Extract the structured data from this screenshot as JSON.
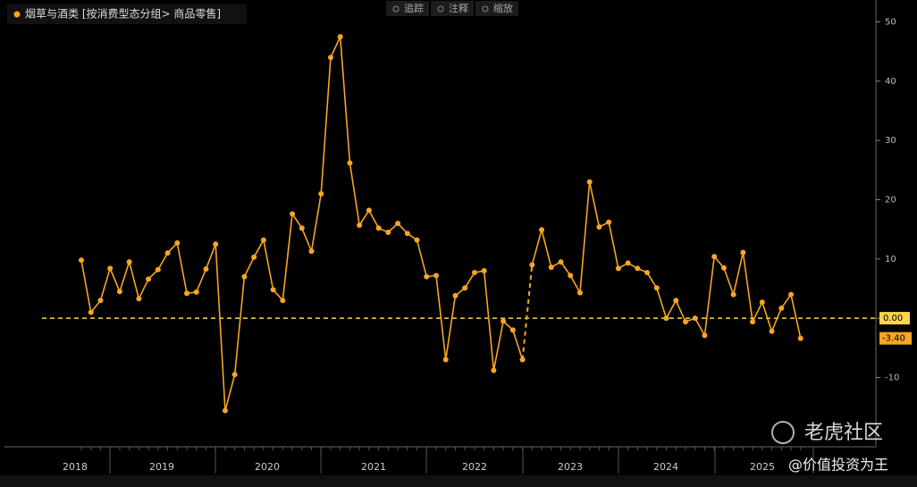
{
  "chart_data": {
    "type": "line",
    "legend": "烟草与酒类 [按消费型态分组> 商品零售]",
    "toolbar": [
      "追踪",
      "注释",
      "缩放"
    ],
    "watermark": [
      "老虎社区",
      "@价值投资为王"
    ],
    "x_groups": [
      "2018",
      "2019",
      "2020",
      "2021",
      "2022",
      "2023",
      "2024",
      "2025"
    ],
    "categories": [
      null,
      null,
      null,
      null,
      null,
      null,
      null,
      null,
      null,
      null,
      null,
      null,
      null,
      null,
      null,
      null,
      null,
      null,
      null,
      null,
      null,
      null,
      null,
      null,
      null,
      null,
      null,
      null,
      null,
      null,
      null,
      null,
      null,
      null,
      null,
      null,
      null,
      null,
      null,
      null,
      null,
      null,
      null,
      null,
      null,
      null,
      null,
      null,
      null,
      null,
      null,
      null,
      null,
      null,
      null,
      null,
      null,
      null,
      null,
      null,
      null,
      null,
      null,
      null,
      null,
      null,
      null,
      null,
      null,
      null,
      null,
      null,
      null,
      null,
      null,
      null
    ],
    "series": [
      {
        "name": "烟草与酒类",
        "color": "#f5a623",
        "values": [
          9.8,
          1,
          3,
          8.4,
          4.5,
          9.5,
          3.3,
          6.6,
          8.2,
          11,
          12.7,
          4.2,
          4.4,
          8.3,
          12.5,
          -15.6,
          -9.5,
          7,
          10.3,
          13.2,
          4.8,
          3,
          17.6,
          15.2,
          11.3,
          21,
          44,
          47.5,
          26.2,
          15.7,
          18.2,
          15.2,
          14.5,
          16,
          14.3,
          13.2,
          7,
          7.2,
          -7,
          3.8,
          5.1,
          7.7,
          8,
          -8.8,
          -0.5,
          -2,
          -7,
          9,
          14.9,
          8.6,
          9.5,
          7.2,
          4.3,
          23,
          15.4,
          16.2,
          8.4,
          9.3,
          8.4,
          7.7,
          5.1,
          0,
          3,
          -0.6,
          0,
          -2.9,
          10.4,
          8.5,
          4,
          11.1,
          -0.6,
          2.7,
          -2.2,
          1.7,
          4,
          -3.4
        ],
        "value_labels": [
          null,
          null,
          null,
          null,
          null,
          null,
          null,
          null,
          null,
          null,
          null,
          null,
          null,
          null,
          null,
          null,
          null,
          null,
          null,
          null,
          null,
          null,
          null,
          null,
          null,
          null,
          null,
          null,
          null,
          null,
          null,
          null,
          null,
          null,
          null,
          null,
          null,
          null,
          null,
          null,
          null,
          null,
          null,
          null,
          null,
          null,
          null,
          null,
          null,
          null,
          null,
          null,
          null,
          null,
          null,
          null,
          null,
          null,
          null,
          null,
          null,
          null,
          null,
          null,
          null,
          null,
          null,
          null,
          null,
          null,
          null,
          null,
          null,
          null,
          null,
          "-3.40"
        ]
      }
    ],
    "dashed_segment": [
      46,
      47
    ],
    "ref_line": {
      "value": 0,
      "label": "0.00",
      "color": "#ffd54a"
    },
    "ylim": [
      -21.7,
      53.7
    ],
    "yticks": [
      -10,
      0,
      10,
      20,
      30,
      40,
      50
    ]
  }
}
